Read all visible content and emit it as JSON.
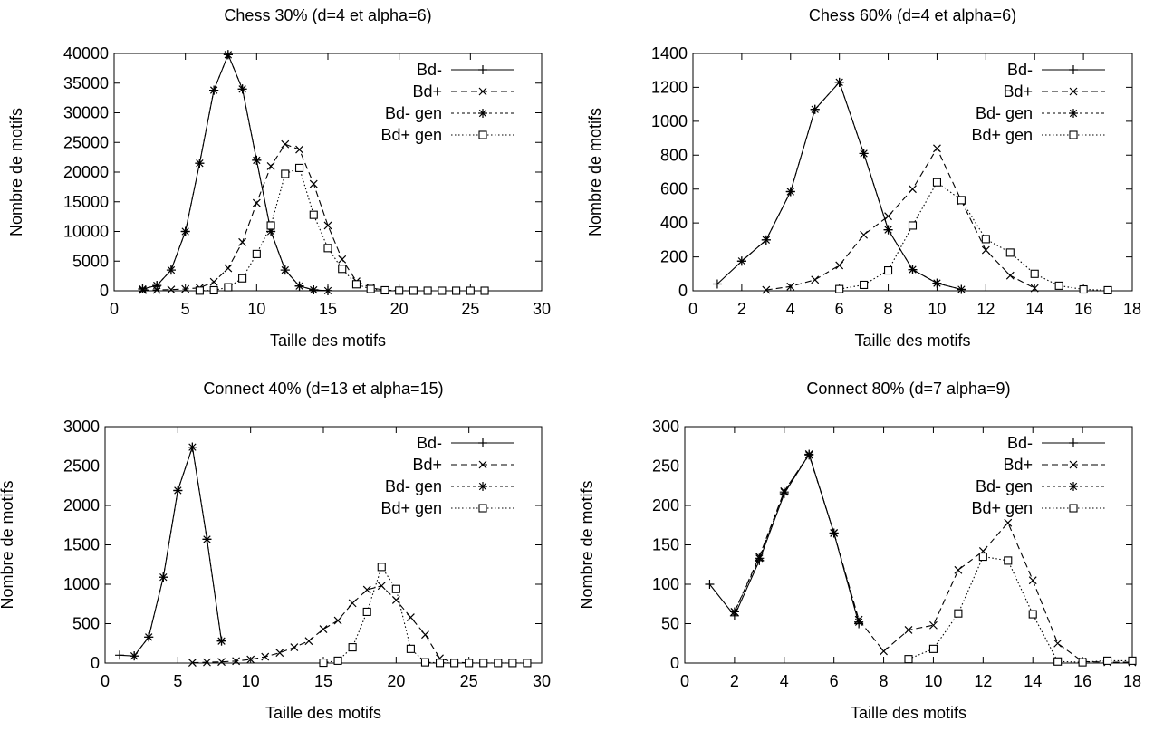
{
  "chart_data": [
    {
      "type": "line",
      "title": "Chess 30% (d=4 et alpha=6)",
      "xlabel": "Taille des motifs",
      "ylabel": "Nombre de motifs",
      "xlim": [
        0,
        30
      ],
      "ylim": [
        0,
        40000
      ],
      "xticks": [
        0,
        5,
        10,
        15,
        20,
        25,
        30
      ],
      "yticks": [
        0,
        5000,
        10000,
        15000,
        20000,
        25000,
        30000,
        35000,
        40000
      ],
      "grid": false,
      "legend_position": "top-right",
      "series": [
        {
          "name": "Bd-",
          "marker": "plus",
          "dash": "solid",
          "x": [
            2,
            3,
            4,
            5,
            6,
            7,
            8,
            9,
            10,
            11,
            12,
            13,
            14,
            15
          ],
          "y": [
            300,
            900,
            3500,
            10000,
            21500,
            33800,
            39800,
            34000,
            22000,
            10000,
            3500,
            800,
            150,
            20
          ]
        },
        {
          "name": "Bd+",
          "marker": "x",
          "dash": "dashed",
          "x": [
            2,
            3,
            4,
            5,
            6,
            7,
            8,
            9,
            10,
            11,
            12,
            13,
            14,
            15,
            16,
            17,
            18,
            19,
            20
          ],
          "y": [
            100,
            150,
            200,
            300,
            500,
            1500,
            3800,
            8200,
            14800,
            21000,
            24700,
            23800,
            18000,
            11000,
            5300,
            1600,
            500,
            100,
            20
          ]
        },
        {
          "name": "Bd- gen",
          "marker": "star",
          "dash": "short-dashed",
          "x": [
            2,
            3,
            4,
            5,
            6,
            7,
            8,
            9,
            10,
            11,
            12,
            13,
            14,
            15
          ],
          "y": [
            300,
            900,
            3500,
            10000,
            21500,
            33800,
            39800,
            34000,
            22000,
            10000,
            3500,
            800,
            150,
            20
          ]
        },
        {
          "name": "Bd+ gen",
          "marker": "square",
          "dash": "dotted",
          "x": [
            6,
            7,
            8,
            9,
            10,
            11,
            12,
            13,
            14,
            15,
            16,
            17,
            18,
            19,
            20,
            21,
            22,
            23,
            24,
            25,
            26
          ],
          "y": [
            20,
            80,
            600,
            2100,
            6200,
            11000,
            19700,
            20700,
            12800,
            7200,
            3700,
            1100,
            300,
            80,
            20,
            5,
            2,
            1,
            1,
            1,
            0
          ]
        }
      ]
    },
    {
      "type": "line",
      "title": "Chess 60% (d=4 et alpha=6)",
      "xlabel": "Taille des motifs",
      "ylabel": "Nombre de motifs",
      "xlim": [
        0,
        18
      ],
      "ylim": [
        0,
        1400
      ],
      "xticks": [
        0,
        2,
        4,
        6,
        8,
        10,
        12,
        14,
        16,
        18
      ],
      "yticks": [
        0,
        200,
        400,
        600,
        800,
        1000,
        1200,
        1400
      ],
      "grid": false,
      "legend_position": "top-right",
      "series": [
        {
          "name": "Bd-",
          "marker": "plus",
          "dash": "solid",
          "x": [
            1,
            2,
            3,
            4,
            5,
            6,
            7,
            8,
            9,
            10,
            11
          ],
          "y": [
            40,
            175,
            300,
            585,
            1070,
            1230,
            810,
            360,
            125,
            45,
            8
          ]
        },
        {
          "name": "Bd+",
          "marker": "x",
          "dash": "dashed",
          "x": [
            3,
            4,
            5,
            6,
            7,
            8,
            9,
            10,
            11,
            12,
            13,
            14
          ],
          "y": [
            5,
            25,
            65,
            150,
            330,
            440,
            600,
            840,
            530,
            240,
            90,
            15
          ]
        },
        {
          "name": "Bd- gen",
          "marker": "star",
          "dash": "short-dashed",
          "x": [
            2,
            3,
            4,
            5,
            6,
            7,
            8,
            9,
            10,
            11
          ],
          "y": [
            175,
            300,
            585,
            1070,
            1230,
            810,
            360,
            125,
            45,
            8
          ]
        },
        {
          "name": "Bd+ gen",
          "marker": "square",
          "dash": "dotted",
          "x": [
            6,
            7,
            8,
            9,
            10,
            11,
            12,
            13,
            14,
            15,
            16,
            17
          ],
          "y": [
            10,
            35,
            120,
            385,
            640,
            535,
            305,
            225,
            100,
            30,
            8,
            3
          ]
        }
      ]
    },
    {
      "type": "line",
      "title": "Connect 40% (d=13 et alpha=15)",
      "xlabel": "Taille des motifs",
      "ylabel": "Nombre de motifs",
      "xlim": [
        0,
        30
      ],
      "ylim": [
        0,
        3000
      ],
      "xticks": [
        0,
        5,
        10,
        15,
        20,
        25,
        30
      ],
      "yticks": [
        0,
        500,
        1000,
        1500,
        2000,
        2500,
        3000
      ],
      "grid": false,
      "legend_position": "top-right",
      "series": [
        {
          "name": "Bd-",
          "marker": "plus",
          "dash": "solid",
          "x": [
            1,
            2,
            3,
            4,
            5,
            6,
            7,
            8
          ],
          "y": [
            100,
            90,
            330,
            1090,
            2190,
            2740,
            1570,
            280
          ]
        },
        {
          "name": "Bd+",
          "marker": "x",
          "dash": "dashed",
          "x": [
            6,
            7,
            8,
            9,
            10,
            11,
            12,
            13,
            14,
            15,
            16,
            17,
            18,
            19,
            20,
            21,
            22,
            23,
            24,
            25
          ],
          "y": [
            5,
            10,
            15,
            25,
            45,
            80,
            130,
            200,
            280,
            430,
            540,
            760,
            930,
            980,
            800,
            580,
            360,
            60,
            10,
            2
          ]
        },
        {
          "name": "Bd- gen",
          "marker": "star",
          "dash": "short-dashed",
          "x": [
            2,
            3,
            4,
            5,
            6,
            7,
            8
          ],
          "y": [
            90,
            330,
            1090,
            2190,
            2740,
            1570,
            280
          ]
        },
        {
          "name": "Bd+ gen",
          "marker": "square",
          "dash": "dotted",
          "x": [
            15,
            16,
            17,
            18,
            19,
            20,
            21,
            22,
            23,
            24,
            25,
            26,
            27,
            28,
            29
          ],
          "y": [
            5,
            30,
            200,
            650,
            1220,
            940,
            180,
            10,
            2,
            1,
            1,
            1,
            1,
            1,
            1
          ]
        }
      ]
    },
    {
      "type": "line",
      "title": "Connect 80% (d=7 alpha=9)",
      "xlabel": "Taille des motifs",
      "ylabel": "Nombre de motifs",
      "xlim": [
        0,
        18
      ],
      "ylim": [
        0,
        300
      ],
      "xticks": [
        0,
        2,
        4,
        6,
        8,
        10,
        12,
        14,
        16,
        18
      ],
      "yticks": [
        0,
        50,
        100,
        150,
        200,
        250,
        300
      ],
      "grid": false,
      "legend_position": "top-right",
      "series": [
        {
          "name": "Bd-",
          "marker": "plus",
          "dash": "solid",
          "x": [
            1,
            2,
            3,
            4,
            5,
            6,
            7
          ],
          "y": [
            100,
            60,
            130,
            215,
            265,
            165,
            50
          ]
        },
        {
          "name": "Bd+",
          "marker": "x",
          "dash": "dashed",
          "x": [
            2,
            3,
            4,
            5,
            6,
            7,
            8,
            9,
            10,
            11,
            12,
            13,
            14,
            15,
            16,
            17,
            18
          ],
          "y": [
            65,
            135,
            218,
            265,
            165,
            55,
            15,
            42,
            48,
            118,
            142,
            178,
            105,
            25,
            2,
            1,
            1
          ]
        },
        {
          "name": "Bd- gen",
          "marker": "star",
          "dash": "short-dashed",
          "x": [
            2,
            3,
            4,
            5,
            6,
            7
          ],
          "y": [
            65,
            133,
            217,
            264,
            165,
            52
          ]
        },
        {
          "name": "Bd+ gen",
          "marker": "square",
          "dash": "dotted",
          "x": [
            9,
            10,
            11,
            12,
            13,
            14,
            15,
            16,
            17,
            18
          ],
          "y": [
            5,
            18,
            63,
            135,
            130,
            62,
            2,
            1,
            3,
            3
          ]
        }
      ]
    }
  ]
}
